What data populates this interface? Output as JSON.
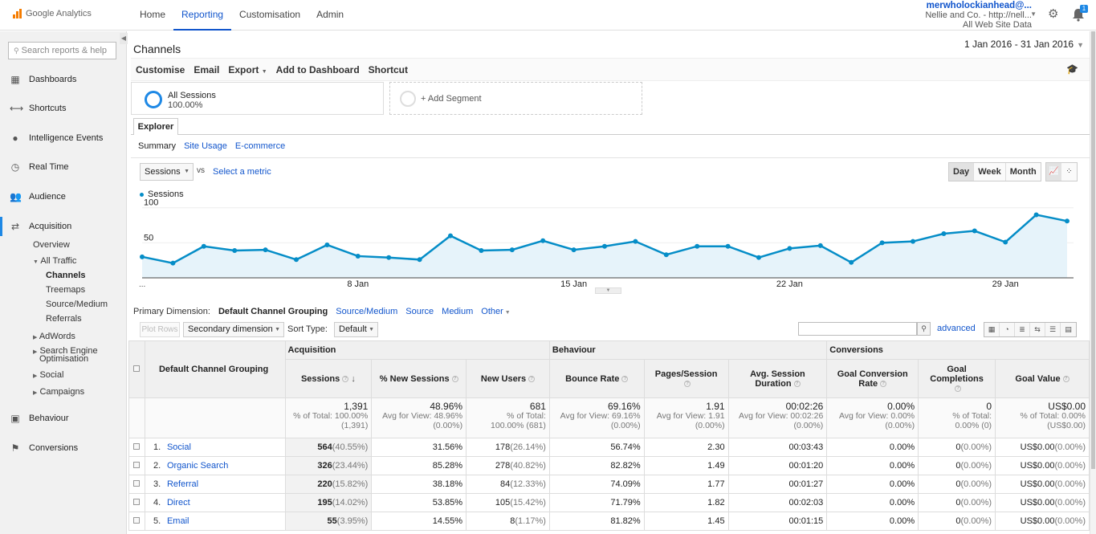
{
  "topbar": {
    "logo_text": "Google Analytics",
    "nav": [
      {
        "label": "Home"
      },
      {
        "label": "Reporting",
        "active": true
      },
      {
        "label": "Customisation"
      },
      {
        "label": "Admin"
      }
    ],
    "account": {
      "email": "merwholockianhead@...",
      "property": "Nellie and Co. - http://nell...",
      "view": "All Web Site Data"
    },
    "notification_count": "1",
    "accent_color": "#1155cc"
  },
  "sidebar": {
    "search_placeholder": "Search reports & help",
    "items": [
      {
        "label": "Dashboards",
        "icon": "grid-icon"
      },
      {
        "label": "Shortcuts",
        "icon": "arrow-icon"
      },
      {
        "label": "Intelligence Events",
        "icon": "lightbulb-icon"
      },
      {
        "label": "Real Time",
        "icon": "clock-icon"
      },
      {
        "label": "Audience",
        "icon": "people-icon"
      },
      {
        "label": "Acquisition",
        "icon": "acquisition-icon"
      },
      {
        "label": "Behaviour",
        "icon": "behaviour-icon"
      },
      {
        "label": "Conversions",
        "icon": "flag-icon"
      }
    ],
    "acquisition_sub": {
      "overview": "Overview",
      "all_traffic": "All Traffic",
      "channels": "Channels",
      "treemaps": "Treemaps",
      "source_medium": "Source/Medium",
      "referrals": "Referrals",
      "adwords": "AdWords",
      "seo_line1": "Search Engine",
      "seo_line2": "Optimisation",
      "social": "Social",
      "campaigns": "Campaigns"
    }
  },
  "page": {
    "title": "Channels",
    "date_range": "1 Jan 2016 - 31 Jan 2016",
    "actions": [
      "Customise",
      "Email",
      "Export",
      "Add to Dashboard",
      "Shortcut"
    ],
    "segment": {
      "name": "All Sessions",
      "pct": "100.00%"
    },
    "add_segment": "+ Add Segment",
    "explorer_tab": "Explorer",
    "subtabs": {
      "summary": "Summary",
      "site_usage": "Site Usage",
      "ecommerce": "E-commerce"
    },
    "metric_select": "Sessions",
    "vs": "vs",
    "select_metric": "Select a metric",
    "periods": [
      "Day",
      "Week",
      "Month"
    ],
    "active_period": "Day"
  },
  "chart_data": {
    "type": "area",
    "series": [
      {
        "name": "Sessions",
        "color": "#058dc7"
      }
    ],
    "x": [
      "1 Jan",
      "2 Jan",
      "3 Jan",
      "4 Jan",
      "5 Jan",
      "6 Jan",
      "7 Jan",
      "8 Jan",
      "9 Jan",
      "10 Jan",
      "11 Jan",
      "12 Jan",
      "13 Jan",
      "14 Jan",
      "15 Jan",
      "16 Jan",
      "17 Jan",
      "18 Jan",
      "19 Jan",
      "20 Jan",
      "21 Jan",
      "22 Jan",
      "23 Jan",
      "24 Jan",
      "25 Jan",
      "26 Jan",
      "27 Jan",
      "28 Jan",
      "29 Jan",
      "30 Jan",
      "31 Jan"
    ],
    "values": [
      30,
      21,
      45,
      39,
      40,
      26,
      47,
      31,
      29,
      26,
      60,
      39,
      40,
      53,
      40,
      45,
      52,
      33,
      45,
      45,
      29,
      42,
      46,
      22,
      50,
      52,
      63,
      67,
      51,
      90,
      81
    ],
    "yticks": [
      50,
      100
    ],
    "ylim": [
      0,
      110
    ],
    "xtick_labels": [
      {
        "index": 7,
        "label": "8 Jan"
      },
      {
        "index": 14,
        "label": "15 Jan"
      },
      {
        "index": 21,
        "label": "22 Jan"
      },
      {
        "index": 28,
        "label": "29 Jan"
      }
    ],
    "start_label": "...",
    "fill_color": "#e6f3fa"
  },
  "dimension": {
    "label": "Primary Dimension:",
    "current": "Default Channel Grouping",
    "options": [
      "Source/Medium",
      "Source",
      "Medium",
      "Other"
    ]
  },
  "tools": {
    "plot_rows": "Plot Rows",
    "secondary_dimension": "Secondary dimension",
    "sort_label": "Sort Type:",
    "sort_value": "Default",
    "advanced": "advanced"
  },
  "table": {
    "groups": {
      "acquisition": "Acquisition",
      "behaviour": "Behaviour",
      "conversions": "Conversions"
    },
    "dim_header": "Default Channel Grouping",
    "headers": {
      "sessions": "Sessions",
      "new_sessions": "% New Sessions",
      "new_users": "New Users",
      "bounce_rate": "Bounce Rate",
      "pages_session": "Pages/Session",
      "avg_duration": "Avg. Session Duration",
      "goal_conv": "Goal Conversion Rate",
      "goal_comp": "Goal Completions",
      "goal_value": "Goal Value"
    },
    "totals": {
      "sessions": {
        "value": "1,391",
        "l1": "% of Total: 100.00%",
        "l2": "(1,391)"
      },
      "new_sessions": {
        "value": "48.96%",
        "l1": "Avg for View: 48.96%",
        "l2": "(0.00%)"
      },
      "new_users": {
        "value": "681",
        "l1": "% of Total:",
        "l2": "100.00% (681)"
      },
      "bounce_rate": {
        "value": "69.16%",
        "l1": "Avg for View: 69.16%",
        "l2": "(0.00%)"
      },
      "pages_session": {
        "value": "1.91",
        "l1": "Avg for View: 1.91",
        "l2": "(0.00%)"
      },
      "avg_duration": {
        "value": "00:02:26",
        "l1": "Avg for View: 00:02:26",
        "l2": "(0.00%)"
      },
      "goal_conv": {
        "value": "0.00%",
        "l1": "Avg for View: 0.00%",
        "l2": "(0.00%)"
      },
      "goal_comp": {
        "value": "0",
        "l1": "% of Total:",
        "l2": "0.00% (0)"
      },
      "goal_value": {
        "value": "US$0.00",
        "l1": "% of Total: 0.00%",
        "l2": "(US$0.00)"
      }
    },
    "rows": [
      {
        "idx": "1.",
        "name": "Social",
        "sessions": "564",
        "sessions_pct": "(40.55%)",
        "new_sessions": "31.56%",
        "new_users": "178",
        "new_users_pct": "(26.14%)",
        "bounce": "56.74%",
        "pages": "2.30",
        "duration": "00:03:43",
        "conv": "0.00%",
        "comp": "0",
        "comp_pct": "(0.00%)",
        "value": "US$0.00",
        "value_pct": "(0.00%)"
      },
      {
        "idx": "2.",
        "name": "Organic Search",
        "sessions": "326",
        "sessions_pct": "(23.44%)",
        "new_sessions": "85.28%",
        "new_users": "278",
        "new_users_pct": "(40.82%)",
        "bounce": "82.82%",
        "pages": "1.49",
        "duration": "00:01:20",
        "conv": "0.00%",
        "comp": "0",
        "comp_pct": "(0.00%)",
        "value": "US$0.00",
        "value_pct": "(0.00%)"
      },
      {
        "idx": "3.",
        "name": "Referral",
        "sessions": "220",
        "sessions_pct": "(15.82%)",
        "new_sessions": "38.18%",
        "new_users": "84",
        "new_users_pct": "(12.33%)",
        "bounce": "74.09%",
        "pages": "1.77",
        "duration": "00:01:27",
        "conv": "0.00%",
        "comp": "0",
        "comp_pct": "(0.00%)",
        "value": "US$0.00",
        "value_pct": "(0.00%)"
      },
      {
        "idx": "4.",
        "name": "Direct",
        "sessions": "195",
        "sessions_pct": "(14.02%)",
        "new_sessions": "53.85%",
        "new_users": "105",
        "new_users_pct": "(15.42%)",
        "bounce": "71.79%",
        "pages": "1.82",
        "duration": "00:02:03",
        "conv": "0.00%",
        "comp": "0",
        "comp_pct": "(0.00%)",
        "value": "US$0.00",
        "value_pct": "(0.00%)"
      },
      {
        "idx": "5.",
        "name": "Email",
        "sessions": "55",
        "sessions_pct": "(3.95%)",
        "new_sessions": "14.55%",
        "new_users": "8",
        "new_users_pct": "(1.17%)",
        "bounce": "81.82%",
        "pages": "1.45",
        "duration": "00:01:15",
        "conv": "0.00%",
        "comp": "0",
        "comp_pct": "(0.00%)",
        "value": "US$0.00",
        "value_pct": "(0.00%)"
      }
    ]
  }
}
